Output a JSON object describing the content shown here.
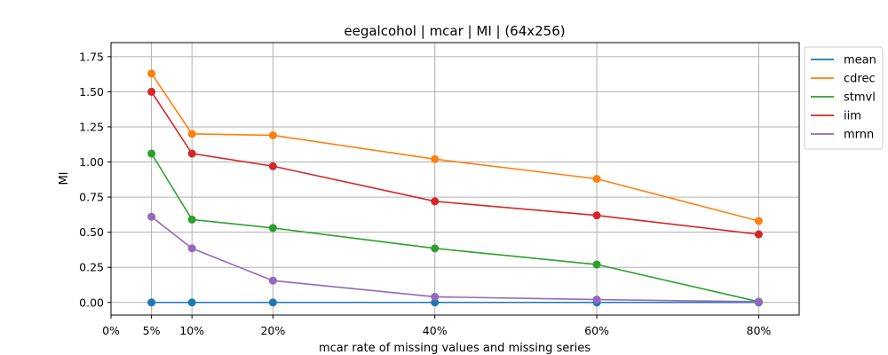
{
  "chart_data": {
    "type": "line",
    "title": "eegalcohol | mcar | MI | (64x256)",
    "xlabel": "mcar rate of missing values and missing series",
    "ylabel": "MI",
    "x": [
      5,
      10,
      20,
      40,
      60,
      80
    ],
    "xticks": [
      0,
      5,
      10,
      20,
      40,
      60,
      80
    ],
    "xtick_labels": [
      "0%",
      "5%",
      "10%",
      "20%",
      "40%",
      "60%",
      "80%"
    ],
    "xlim": [
      0,
      85
    ],
    "yticks": [
      0.0,
      0.25,
      0.5,
      0.75,
      1.0,
      1.25,
      1.5,
      1.75
    ],
    "ytick_labels": [
      "0.00",
      "0.25",
      "0.50",
      "0.75",
      "1.00",
      "1.25",
      "1.50",
      "1.75"
    ],
    "ylim": [
      -0.09,
      1.85
    ],
    "grid": true,
    "legend": "outside-right-top",
    "series": [
      {
        "name": "mean",
        "color": "#1f77b4",
        "values": [
          0.0,
          0.0,
          0.0,
          0.0,
          0.0,
          0.0
        ]
      },
      {
        "name": "cdrec",
        "color": "#ff7f0e",
        "values": [
          1.63,
          1.2,
          1.19,
          1.02,
          0.88,
          0.58
        ]
      },
      {
        "name": "stmvl",
        "color": "#2ca02c",
        "values": [
          1.06,
          0.59,
          0.53,
          0.385,
          0.27,
          0.005
        ]
      },
      {
        "name": "iim",
        "color": "#d62728",
        "values": [
          1.5,
          1.06,
          0.97,
          0.72,
          0.62,
          0.485
        ]
      },
      {
        "name": "mrnn",
        "color": "#9467bd",
        "values": [
          0.61,
          0.385,
          0.155,
          0.04,
          0.02,
          0.005
        ]
      }
    ]
  }
}
